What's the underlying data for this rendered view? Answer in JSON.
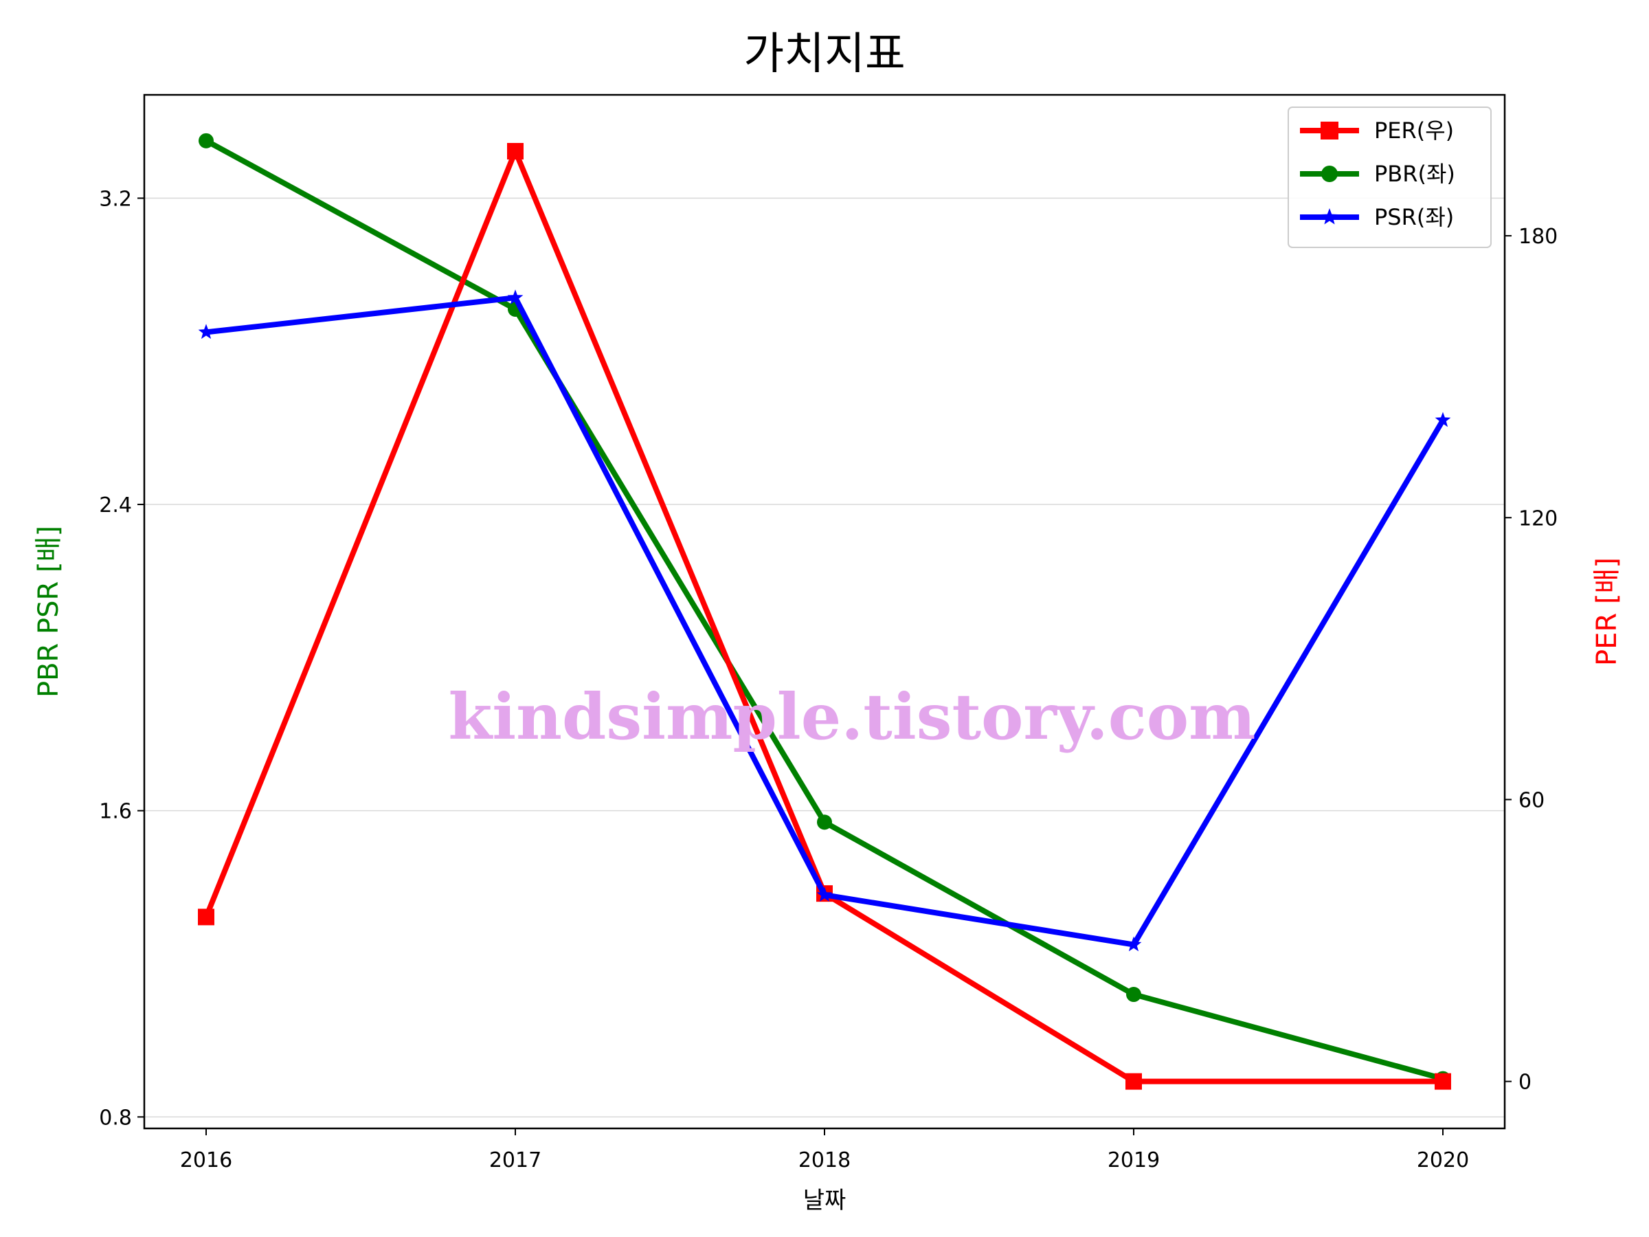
{
  "chart_data": {
    "type": "line",
    "title": "가치지표",
    "xlabel": "날짜",
    "ylabel_left": "PBR PSR [배]",
    "ylabel_right": "PER [배]",
    "categories": [
      "2016",
      "2017",
      "2018",
      "2019",
      "2020"
    ],
    "ylim_left": [
      0.77,
      3.47
    ],
    "yticks_left": [
      "0.8",
      "1.6",
      "2.4",
      "3.2"
    ],
    "ylim_right": [
      -10,
      210
    ],
    "yticks_right": [
      "0",
      "60",
      "120",
      "180"
    ],
    "grid": "horizontal",
    "legend_position": "top-right",
    "series": [
      {
        "name": "PER(우)",
        "axis": "right",
        "color": "#ff0000",
        "marker": "square",
        "values": [
          35,
          198,
          40,
          0,
          0
        ]
      },
      {
        "name": "PBR(좌)",
        "axis": "left",
        "color": "#008000",
        "marker": "circle",
        "values": [
          3.35,
          2.91,
          1.57,
          1.12,
          0.9
        ]
      },
      {
        "name": "PSR(좌)",
        "axis": "left",
        "color": "#0000ff",
        "marker": "star",
        "values": [
          2.85,
          2.94,
          1.38,
          1.25,
          2.62
        ]
      }
    ],
    "watermark": "kindsimple.tistory.com"
  }
}
